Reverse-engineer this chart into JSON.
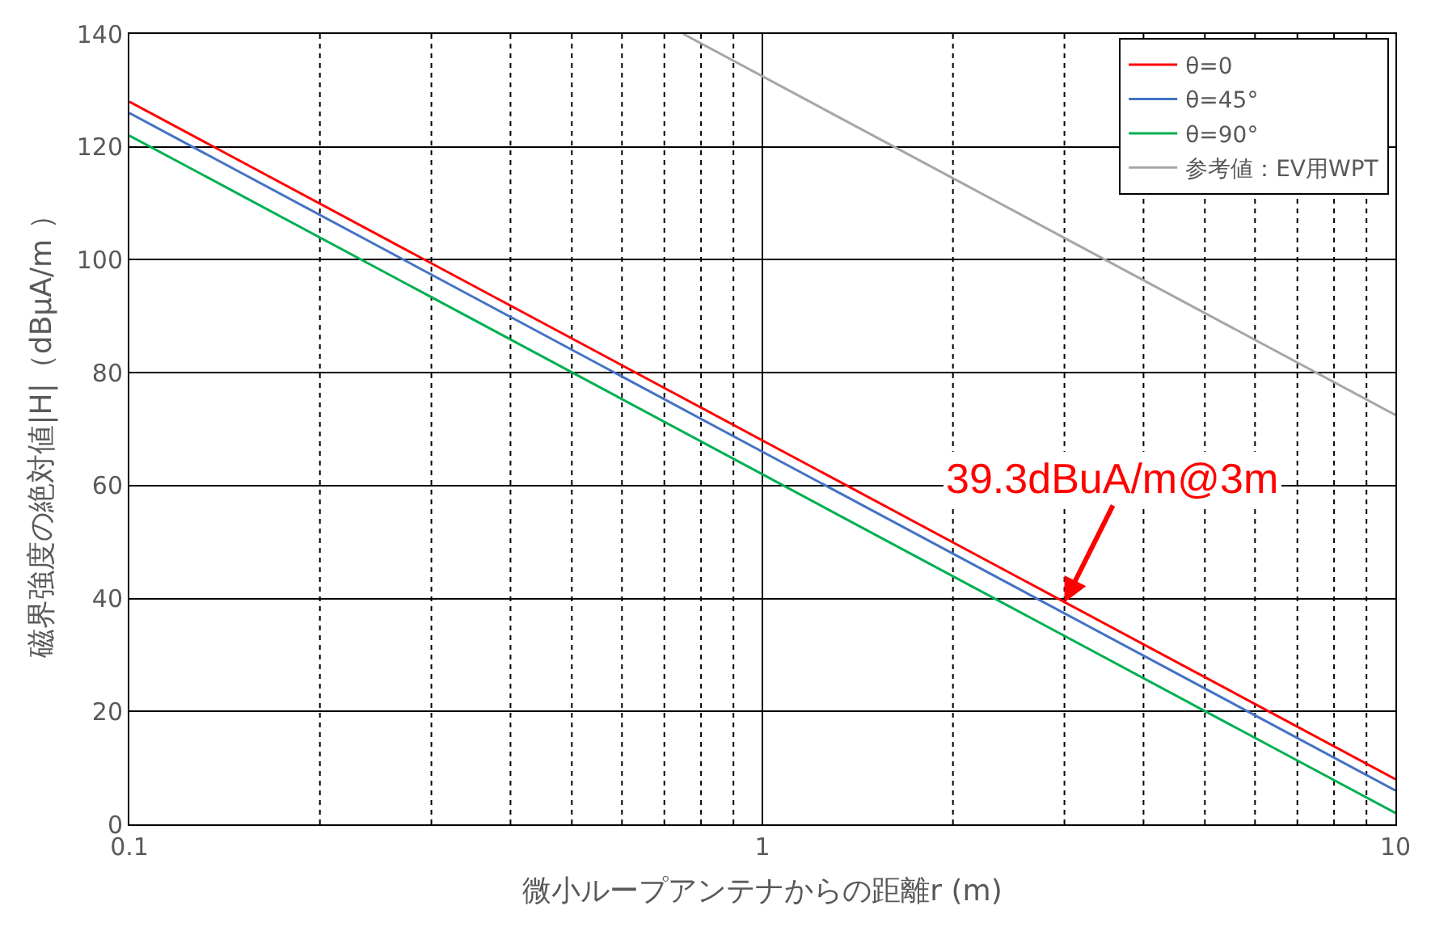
{
  "chart_data": {
    "type": "line",
    "xlabel": "微小ループアンテナからの距離r (m)",
    "ylabel": "磁界強度の絶対値|H|（dBμA/m ）",
    "log": "x",
    "xlim": [
      0.1,
      10
    ],
    "ylim": [
      0,
      140
    ],
    "xticks": [
      0.1,
      {
        "value": 0.2,
        "label": null
      },
      {
        "value": 0.3,
        "label": null
      },
      {
        "value": 0.4,
        "label": null
      },
      {
        "value": 0.5,
        "label": null
      },
      {
        "value": 0.6,
        "label": null
      },
      {
        "value": 0.7,
        "label": null
      },
      {
        "value": 0.8,
        "label": null
      },
      {
        "value": 0.9,
        "label": null
      },
      1,
      {
        "value": 2,
        "label": null
      },
      {
        "value": 3,
        "label": null
      },
      {
        "value": 4,
        "label": null
      },
      {
        "value": 5,
        "label": null
      },
      {
        "value": 6,
        "label": null
      },
      {
        "value": 7,
        "label": null
      },
      {
        "value": 8,
        "label": null
      },
      {
        "value": 9,
        "label": null
      },
      10
    ],
    "yticks": [
      0,
      20,
      40,
      60,
      80,
      100,
      120,
      140
    ],
    "grid": true,
    "legend": "top right",
    "marker": "none",
    "line_style": "solid",
    "series": [
      {
        "name": "θ=0",
        "color": "#ff0000",
        "x": [
          0.1,
          10
        ],
        "values": [
          128,
          8
        ]
      },
      {
        "name": "θ=45°",
        "color": "#4472c4",
        "x": [
          0.1,
          10
        ],
        "values": [
          126,
          6
        ]
      },
      {
        "name": "θ=90°",
        "color": "#00b050",
        "x": [
          0.1,
          10
        ],
        "values": [
          122,
          2
        ]
      },
      {
        "name": "参考値：EV用WPT",
        "color": "#a6a6a6",
        "x": [
          0.75,
          10
        ],
        "values": [
          140,
          72.5
        ]
      }
    ],
    "annotations": [
      {
        "text": "39.3dBuA/m@3m",
        "x": 3,
        "y": 39.3
      }
    ]
  }
}
